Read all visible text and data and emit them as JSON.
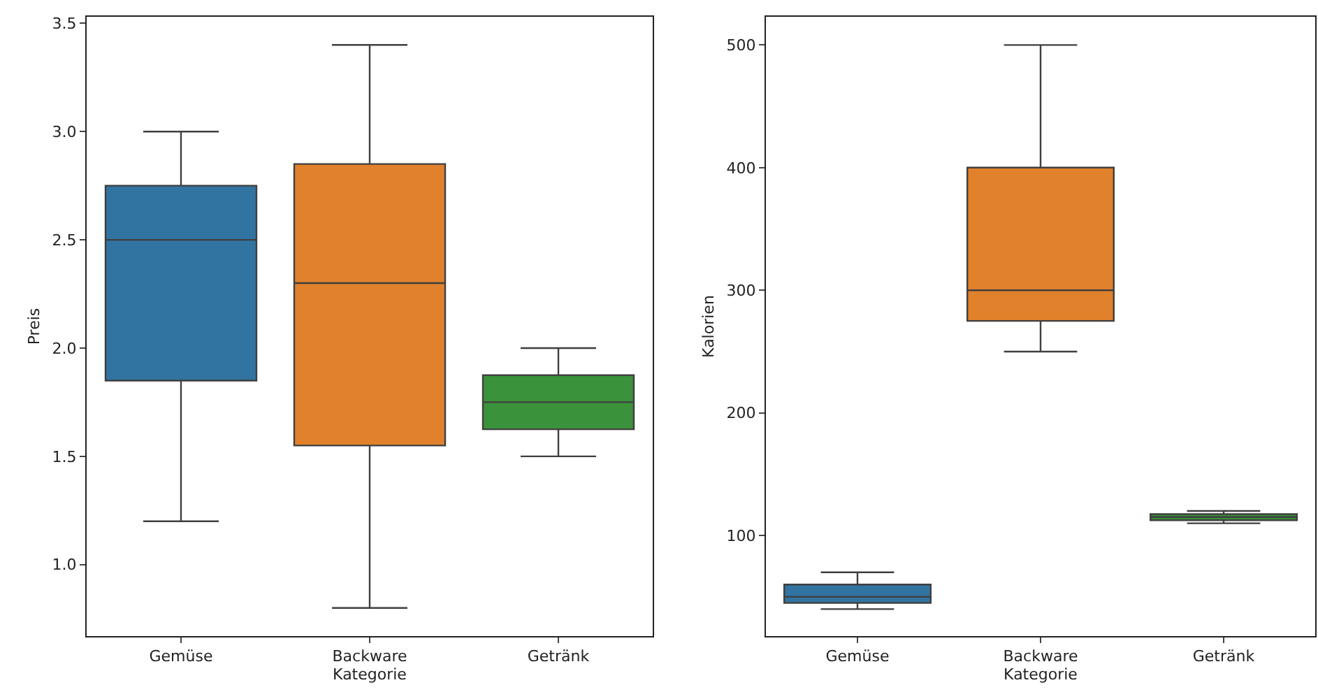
{
  "chart_data": [
    {
      "type": "box",
      "xlabel": "Kategorie",
      "ylabel": "Preis",
      "categories": [
        "Gemüse",
        "Backware",
        "Getränk"
      ],
      "colors": [
        "#3274a1",
        "#e1812c",
        "#3a923a"
      ],
      "boxes": [
        {
          "low": 1.2,
          "q1": 1.85,
          "median": 2.5,
          "q3": 2.75,
          "high": 3.0
        },
        {
          "low": 0.8,
          "q1": 1.55,
          "median": 2.3,
          "q3": 2.85,
          "high": 3.4
        },
        {
          "low": 1.5,
          "q1": 1.625,
          "median": 1.75,
          "q3": 1.875,
          "high": 2.0
        }
      ],
      "ylim": [
        0.67,
        3.53
      ],
      "yticks": [
        {
          "value": 1,
          "label": "1.0"
        },
        1.5,
        {
          "value": 2,
          "label": "2.0"
        },
        2.5,
        {
          "value": 3,
          "label": "3.0"
        },
        3.5
      ],
      "grid": false,
      "legend": false
    },
    {
      "type": "box",
      "xlabel": "Kategorie",
      "ylabel": "Kalorien",
      "categories": [
        "Gemüse",
        "Backware",
        "Getränk"
      ],
      "colors": [
        "#3274a1",
        "#e1812c",
        "#3a923a"
      ],
      "boxes": [
        {
          "low": 40,
          "q1": 45,
          "median": 50,
          "q3": 60,
          "high": 70
        },
        {
          "low": 250,
          "q1": 275,
          "median": 300,
          "q3": 400,
          "high": 500
        },
        {
          "low": 110,
          "q1": 112.5,
          "median": 115,
          "q3": 117.5,
          "high": 120
        }
      ],
      "ylim": [
        18,
        523
      ],
      "yticks": [
        100,
        200,
        300,
        400,
        500
      ],
      "grid": false,
      "legend": false
    }
  ]
}
